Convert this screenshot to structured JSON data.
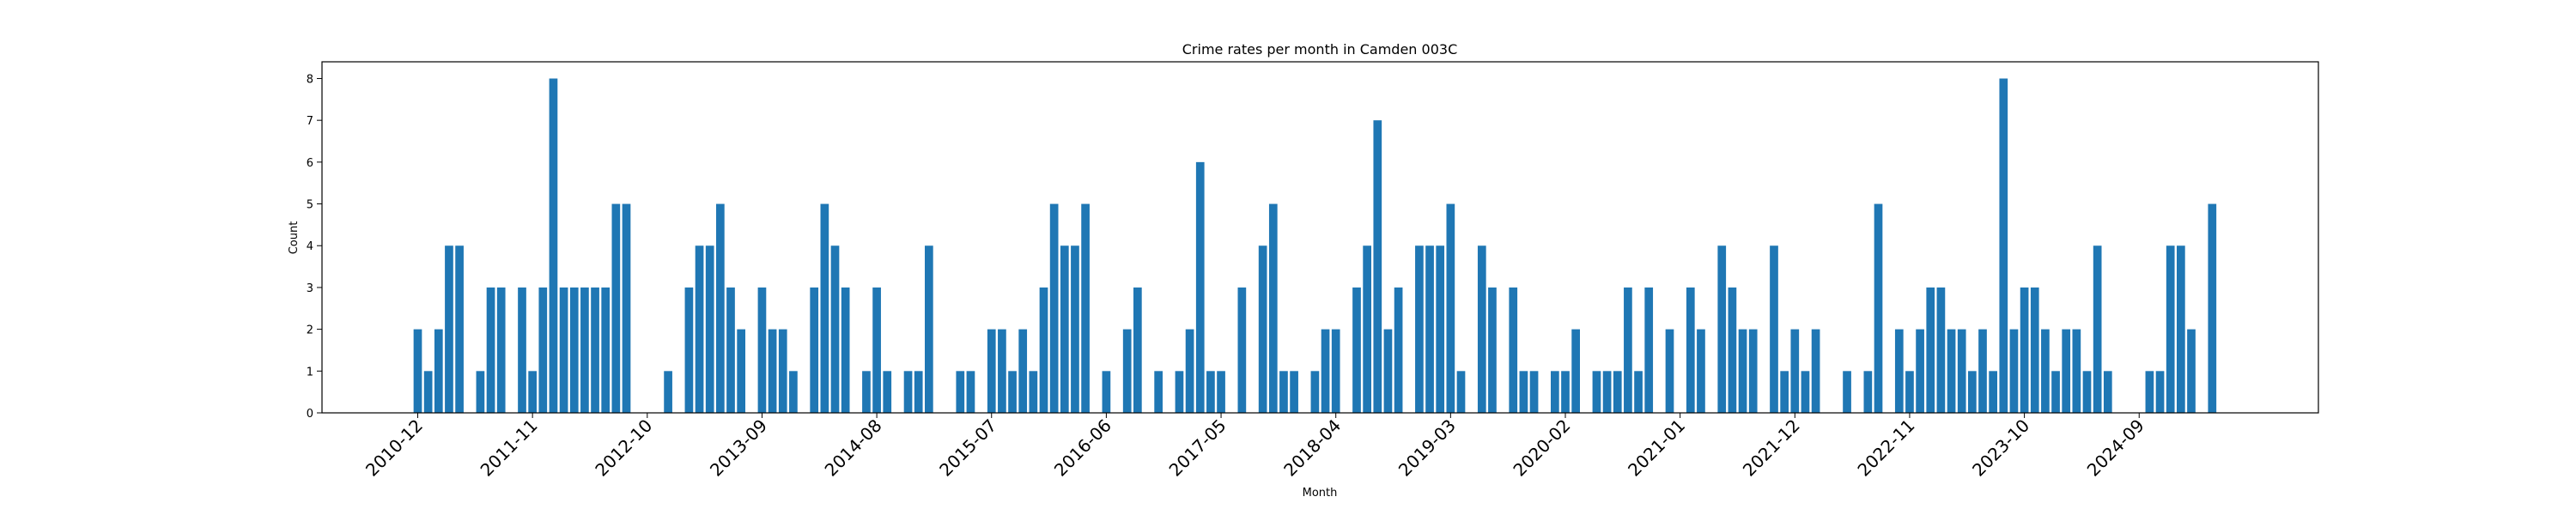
{
  "chart_data": {
    "type": "bar",
    "title": "Crime rates per month in Camden 003C",
    "xlabel": "Month",
    "ylabel": "Count",
    "ylim": [
      0,
      8.4
    ],
    "yticks": [
      0,
      1,
      2,
      3,
      4,
      5,
      6,
      7,
      8
    ],
    "x_tick_labels": [
      "2010-12",
      "2011-11",
      "2012-10",
      "2013-09",
      "2014-08",
      "2015-07",
      "2016-06",
      "2017-05",
      "2018-04",
      "2019-03",
      "2020-02",
      "2021-01",
      "2021-12",
      "2022-11",
      "2023-10",
      "2024-09"
    ],
    "x_tick_every": 11,
    "grid": false,
    "legend": "none",
    "bar_color": "#1f77b4",
    "start_month": "2010-12",
    "values": [
      2,
      1,
      2,
      4,
      4,
      0,
      1,
      3,
      3,
      0,
      3,
      1,
      3,
      8,
      3,
      3,
      3,
      3,
      3,
      5,
      5,
      0,
      0,
      0,
      1,
      0,
      3,
      4,
      4,
      5,
      3,
      2,
      0,
      3,
      2,
      2,
      1,
      0,
      3,
      5,
      4,
      3,
      0,
      1,
      3,
      1,
      0,
      1,
      1,
      4,
      0,
      0,
      1,
      1,
      0,
      2,
      2,
      1,
      2,
      1,
      3,
      5,
      4,
      4,
      5,
      0,
      1,
      0,
      2,
      3,
      0,
      1,
      0,
      1,
      2,
      6,
      1,
      1,
      0,
      3,
      0,
      4,
      5,
      1,
      1,
      0,
      1,
      2,
      2,
      0,
      3,
      4,
      7,
      2,
      3,
      0,
      4,
      4,
      4,
      5,
      1,
      0,
      4,
      3,
      0,
      3,
      1,
      1,
      0,
      1,
      1,
      2,
      0,
      1,
      1,
      1,
      3,
      1,
      3,
      0,
      2,
      0,
      3,
      2,
      0,
      4,
      3,
      2,
      2,
      0,
      4,
      1,
      2,
      1,
      2,
      0,
      0,
      1,
      0,
      1,
      5,
      0,
      2,
      1,
      2,
      3,
      3,
      2,
      2,
      1,
      2,
      1,
      8,
      2,
      3,
      3,
      2,
      1,
      2,
      2,
      1,
      4,
      1,
      0,
      0,
      0,
      1,
      1,
      4,
      4,
      2,
      0,
      5
    ]
  }
}
